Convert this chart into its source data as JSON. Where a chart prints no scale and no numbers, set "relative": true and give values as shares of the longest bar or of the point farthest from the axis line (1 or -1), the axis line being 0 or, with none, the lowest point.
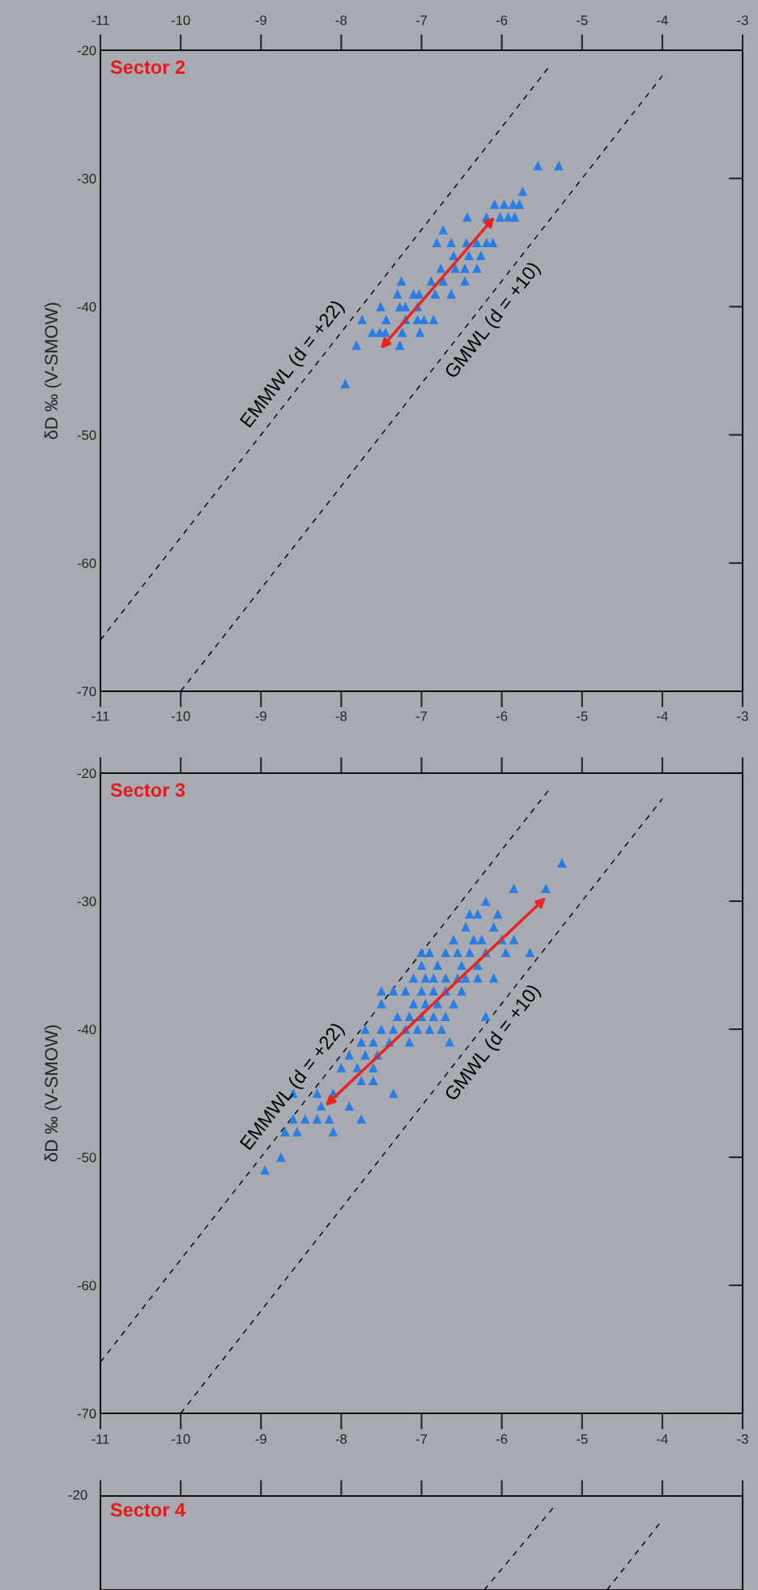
{
  "chart_data": [
    {
      "type": "scatter",
      "title": "Sector 2",
      "ylabel": "δD ‰ (V-SMOW)",
      "xlim": [
        -11,
        -3
      ],
      "xticks": [
        -11,
        -10,
        -9,
        -8,
        -7,
        -6,
        -5,
        -4,
        -3
      ],
      "ylim": [
        -70,
        -20
      ],
      "yticks": [
        -20,
        -30,
        -40,
        -50,
        -60,
        -70
      ],
      "grid": false,
      "legend": false,
      "series": [
        {
          "type": "scatter",
          "marker": "triangle",
          "color": "#2a7de1",
          "x": [
            -5.55,
            -5.29,
            -5.74,
            -6.09,
            -5.97,
            -5.86,
            -5.78,
            -6.43,
            -6.19,
            -6.02,
            -5.92,
            -5.84,
            -6.73,
            -6.81,
            -6.63,
            -6.44,
            -6.31,
            -6.19,
            -6.11,
            -6.6,
            -6.41,
            -6.26,
            -6.76,
            -6.58,
            -6.46,
            -6.31,
            -7.25,
            -6.88,
            -6.73,
            -6.46,
            -7.3,
            -7.1,
            -7.03,
            -6.83,
            -6.63,
            -7.51,
            -7.27,
            -7.2,
            -7.05,
            -7.74,
            -7.44,
            -7.2,
            -7.05,
            -6.97,
            -6.85,
            -7.61,
            -7.52,
            -7.45,
            -7.24,
            -7.02,
            -7.81,
            -7.27,
            -7.95
          ],
          "values": [
            -29,
            -29,
            -31,
            -32,
            -32,
            -32,
            -32,
            -33,
            -33,
            -33,
            -33,
            -33,
            -34,
            -35,
            -35,
            -35,
            -35,
            -35,
            -35,
            -36,
            -36,
            -36,
            -37,
            -37,
            -37,
            -37,
            -38,
            -38,
            -38,
            -38,
            -39,
            -39,
            -39,
            -39,
            -39,
            -40,
            -40,
            -40,
            -40,
            -41,
            -41,
            -41,
            -41,
            -41,
            -41,
            -42,
            -42,
            -42,
            -42,
            -42,
            -43,
            -43,
            -46
          ]
        },
        {
          "type": "line",
          "name": "EMMWL (d = +22)",
          "color": "#000000",
          "line_style": "dashed",
          "x": [
            -11,
            -5.4
          ],
          "values": [
            -66,
            -21.2
          ]
        },
        {
          "type": "line",
          "name": "GMWL (d = +10)",
          "color": "#000000",
          "line_style": "dashed",
          "x": [
            -10,
            -4.0
          ],
          "values": [
            -70,
            -22
          ]
        },
        {
          "type": "line",
          "color": "#e8251f",
          "line_style": "solid",
          "x": [
            -7.51,
            -6.09
          ],
          "values": [
            -43.3,
            -33.0
          ]
        }
      ]
    },
    {
      "type": "scatter",
      "title": "Sector 3",
      "ylabel": "δD ‰ (V-SMOW)",
      "xlim": [
        -11,
        -3
      ],
      "xticks": [
        -11,
        -10,
        -9,
        -8,
        -7,
        -6,
        -5,
        -4,
        -3
      ],
      "ylim": [
        -70,
        -20
      ],
      "yticks": [
        -20,
        -30,
        -40,
        -50,
        -60,
        -70
      ],
      "grid": false,
      "legend": false,
      "series": [
        {
          "type": "scatter",
          "marker": "triangle",
          "color": "#2a7de1",
          "x": [
            -5.25,
            -5.85,
            -5.45,
            -6.2,
            -6.4,
            -6.3,
            -6.05,
            -6.45,
            -6.1,
            -6.6,
            -6.35,
            -6.25,
            -6.0,
            -5.85,
            -7.0,
            -6.9,
            -6.7,
            -6.55,
            -6.4,
            -6.2,
            -5.95,
            -5.65,
            -7.0,
            -6.8,
            -6.5,
            -6.3,
            -7.1,
            -6.95,
            -6.85,
            -6.7,
            -6.55,
            -6.45,
            -6.3,
            -6.1,
            -7.5,
            -7.35,
            -7.2,
            -7.0,
            -6.85,
            -6.7,
            -6.5,
            -7.5,
            -7.1,
            -6.95,
            -6.8,
            -6.6,
            -7.3,
            -7.15,
            -7.0,
            -6.85,
            -6.7,
            -6.2,
            -7.7,
            -7.5,
            -7.35,
            -7.2,
            -7.05,
            -6.9,
            -6.75,
            -7.75,
            -7.6,
            -7.4,
            -7.15,
            -6.65,
            -7.9,
            -7.7,
            -7.55,
            -8.0,
            -7.8,
            -7.6,
            -7.75,
            -7.6,
            -8.6,
            -8.3,
            -8.1,
            -7.35,
            -8.25,
            -7.9,
            -8.6,
            -8.45,
            -8.3,
            -8.15,
            -7.75,
            -8.7,
            -8.55,
            -8.1,
            -8.75,
            -8.95
          ],
          "values": [
            -27,
            -29,
            -29,
            -30,
            -31,
            -31,
            -31,
            -32,
            -32,
            -33,
            -33,
            -33,
            -33,
            -33,
            -34,
            -34,
            -34,
            -34,
            -34,
            -34,
            -34,
            -34,
            -35,
            -35,
            -35,
            -35,
            -36,
            -36,
            -36,
            -36,
            -36,
            -36,
            -36,
            -36,
            -37,
            -37,
            -37,
            -37,
            -37,
            -37,
            -37,
            -38,
            -38,
            -38,
            -38,
            -38,
            -39,
            -39,
            -39,
            -39,
            -39,
            -39,
            -40,
            -40,
            -40,
            -40,
            -40,
            -40,
            -40,
            -41,
            -41,
            -41,
            -41,
            -41,
            -42,
            -42,
            -42,
            -43,
            -43,
            -43,
            -44,
            -44,
            -45,
            -45,
            -45,
            -45,
            -46,
            -46,
            -47,
            -47,
            -47,
            -47,
            -47,
            -48,
            -48,
            -48,
            -50,
            -51
          ]
        },
        {
          "type": "line",
          "name": "EMMWL (d = +22)",
          "color": "#000000",
          "line_style": "dashed",
          "x": [
            -11,
            -5.4
          ],
          "values": [
            -66,
            -21.2
          ]
        },
        {
          "type": "line",
          "name": "GMWL (d = +10)",
          "color": "#000000",
          "line_style": "dashed",
          "x": [
            -10,
            -4.0
          ],
          "values": [
            -70,
            -22
          ]
        },
        {
          "type": "line",
          "color": "#e8251f",
          "line_style": "solid",
          "x": [
            -8.2,
            -5.45
          ],
          "values": [
            -46,
            -29.7
          ]
        }
      ]
    },
    {
      "type": "line",
      "title": "Sector 4",
      "annotations": [
        "-20"
      ],
      "relative": true,
      "xlim": [
        -11,
        -3
      ],
      "xticks": [
        -11,
        -10,
        -9,
        -8,
        -7,
        -6,
        -5,
        -4,
        -3
      ],
      "grid": false,
      "legend": false,
      "series": [
        {
          "color": "#000000",
          "line_style": "dashed",
          "x": [
            -6.22,
            -5.33
          ],
          "values": [
            0,
            1
          ]
        },
        {
          "color": "#000000",
          "line_style": "dashed",
          "x": [
            -4.69,
            -4.02
          ],
          "values": [
            0,
            0.8
          ]
        }
      ]
    }
  ]
}
